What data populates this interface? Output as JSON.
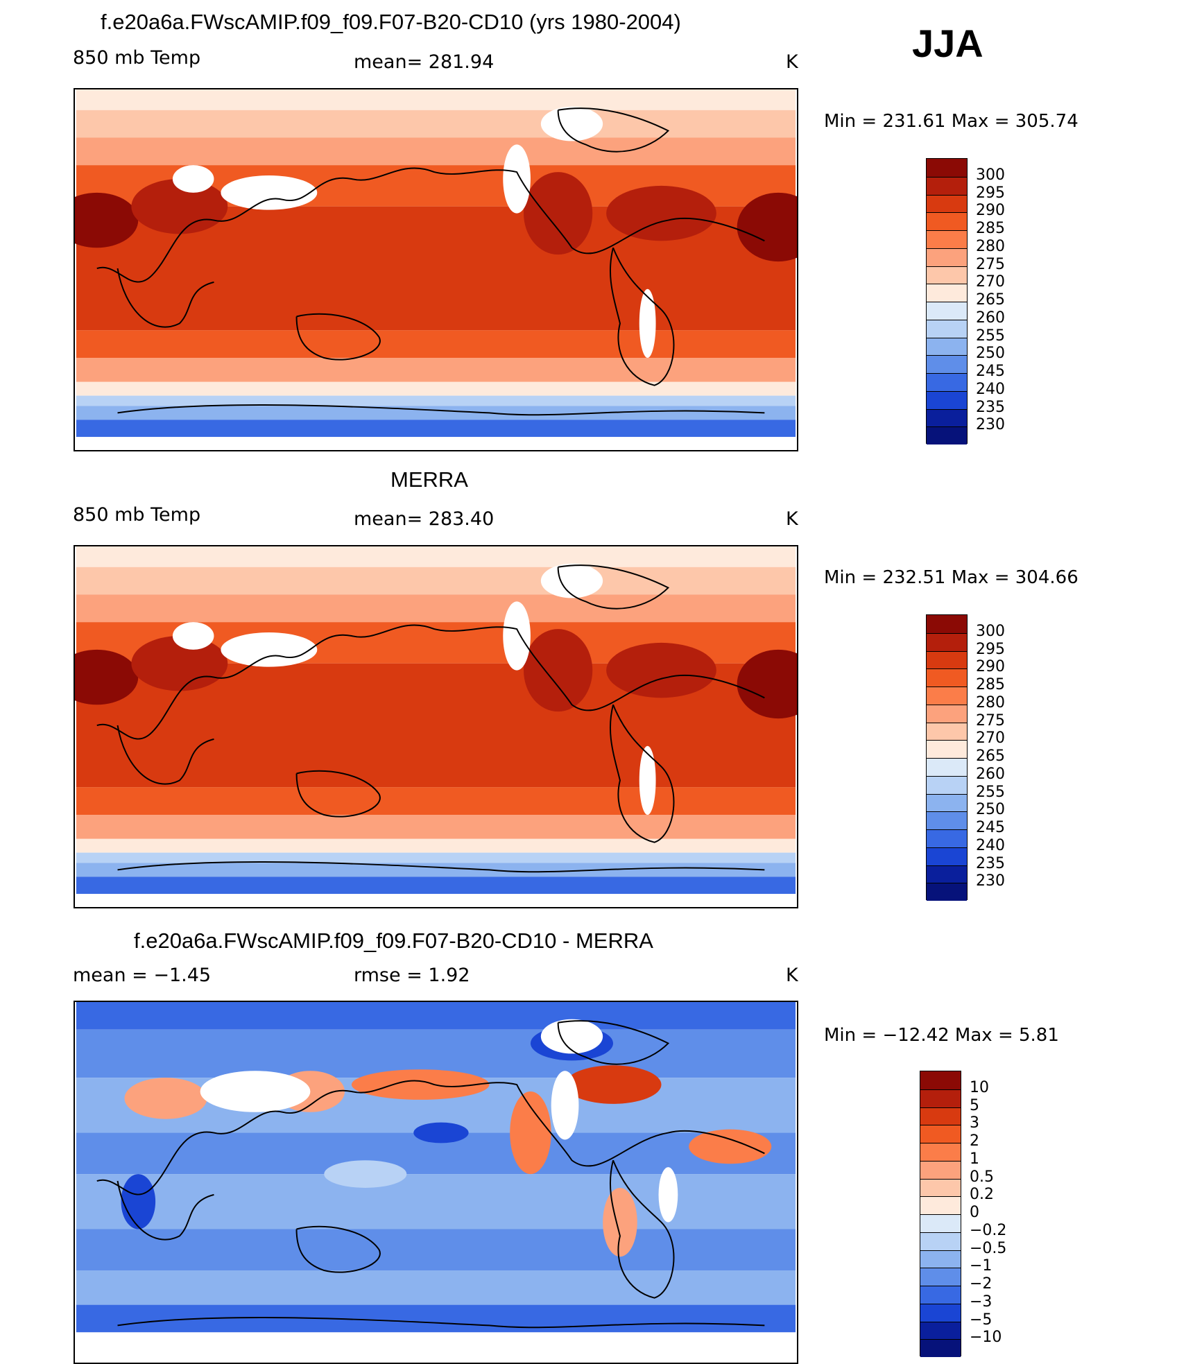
{
  "season": "JJA",
  "panels": [
    {
      "title": "f.e20a6a.FWscAMIP.f09_f09.F07-B20-CD10 (yrs 1980-2004)",
      "left_label": "850 mb Temp",
      "center_label": "mean= 281.94",
      "units": "K",
      "minmax": "Min = 231.61 Max = 305.74"
    },
    {
      "title": "MERRA",
      "left_label": "850 mb Temp",
      "center_label": "mean= 283.40",
      "units": "K",
      "minmax": "Min = 232.51 Max = 304.66"
    },
    {
      "title": "f.e20a6a.FWscAMIP.f09_f09.F07-B20-CD10 - MERRA",
      "left_label": "mean =   −1.45",
      "center_label": "rmse =    1.92",
      "units": "K",
      "minmax": "Min = −12.42 Max =    5.81"
    }
  ],
  "chart_data": [
    {
      "type": "heatmap",
      "title": "f.e20a6a.FWscAMIP.f09_f09.F07-B20-CD10 (yrs 1980-2004)",
      "variable": "850 mb Temp",
      "units": "K",
      "mean": 281.94,
      "min": 231.61,
      "max": 305.74,
      "colorbar_levels": [
        "300",
        "295",
        "290",
        "285",
        "280",
        "275",
        "270",
        "265",
        "260",
        "255",
        "250",
        "245",
        "240",
        "235",
        "230"
      ],
      "colorbar_colors": [
        "#8b0a05",
        "#b41f0c",
        "#d83a10",
        "#f05a22",
        "#fb7d49",
        "#fca27d",
        "#fdc7aa",
        "#feeadc",
        "#dbe9f8",
        "#b8d2f5",
        "#8cb3ef",
        "#5f8ee9",
        "#3869e3",
        "#1a45d4",
        "#0a1f9c",
        "#06127a"
      ]
    },
    {
      "type": "heatmap",
      "title": "MERRA",
      "variable": "850 mb Temp",
      "units": "K",
      "mean": 283.4,
      "min": 232.51,
      "max": 304.66,
      "colorbar_levels": [
        "300",
        "295",
        "290",
        "285",
        "280",
        "275",
        "270",
        "265",
        "260",
        "255",
        "250",
        "245",
        "240",
        "235",
        "230"
      ],
      "colorbar_colors": [
        "#8b0a05",
        "#b41f0c",
        "#d83a10",
        "#f05a22",
        "#fb7d49",
        "#fca27d",
        "#fdc7aa",
        "#feeadc",
        "#dbe9f8",
        "#b8d2f5",
        "#8cb3ef",
        "#5f8ee9",
        "#3869e3",
        "#1a45d4",
        "#0a1f9c",
        "#06127a"
      ]
    },
    {
      "type": "heatmap",
      "title": "f.e20a6a.FWscAMIP.f09_f09.F07-B20-CD10 - MERRA",
      "units": "K",
      "mean": -1.45,
      "rmse": 1.92,
      "min": -12.42,
      "max": 5.81,
      "colorbar_levels": [
        "10",
        "5",
        "3",
        "2",
        "1",
        "0.5",
        "0.2",
        "0",
        "−0.2",
        "−0.5",
        "−1",
        "−2",
        "−3",
        "−5",
        "−10"
      ],
      "colorbar_colors": [
        "#8b0a05",
        "#b41f0c",
        "#d83a10",
        "#f05a22",
        "#fb7d49",
        "#fca27d",
        "#fdc7aa",
        "#feeadc",
        "#dbe9f8",
        "#b8d2f5",
        "#8cb3ef",
        "#5f8ee9",
        "#3869e3",
        "#1a45d4",
        "#0a1f9c",
        "#06127a"
      ]
    }
  ]
}
